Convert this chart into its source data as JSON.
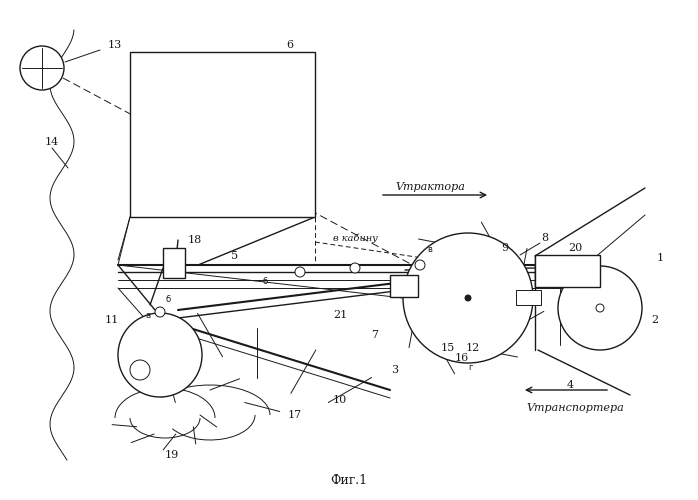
{
  "title": "Фиг.1",
  "bg_color": "#ffffff",
  "line_color": "#1a1a1a",
  "v_traktora_text": "Vтрактора",
  "v_transportera_text": "Vтранспортера",
  "v_kabinu_text": "в кабину"
}
